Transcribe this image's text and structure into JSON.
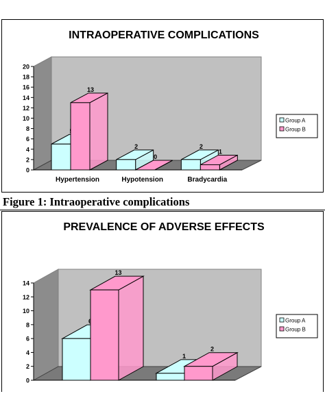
{
  "figure_caption": "Figure 1: Intraoperative complications",
  "chart_data": [
    {
      "type": "bar",
      "title": "INTRAOPERATIVE COMPLICATIONS",
      "categories": [
        "Hypertension",
        "Hypotension",
        "Bradycardia"
      ],
      "series": [
        {
          "name": "Group A",
          "values": [
            5,
            2,
            2
          ],
          "color": "#ccffff"
        },
        {
          "name": "Group B",
          "values": [
            13,
            0,
            1
          ],
          "color": "#ff99cc"
        }
      ],
      "ylim": [
        0,
        20
      ],
      "yticks": [
        0,
        2,
        4,
        6,
        8,
        10,
        12,
        14,
        16,
        18,
        20
      ],
      "grid": false,
      "legend": "right",
      "xlabel": "",
      "ylabel": ""
    },
    {
      "type": "bar",
      "title": "PREVALENCE OF ADVERSE EFFECTS",
      "categories": [
        "",
        ""
      ],
      "series": [
        {
          "name": "Group A",
          "values": [
            6,
            1
          ],
          "color": "#ccffff"
        },
        {
          "name": "Group B",
          "values": [
            13,
            2
          ],
          "color": "#ff99cc"
        }
      ],
      "ylim": [
        0,
        14
      ],
      "yticks": [
        0,
        2,
        4,
        6,
        8,
        10,
        12,
        14
      ],
      "grid": false,
      "legend": "right",
      "xlabel": "",
      "ylabel": ""
    }
  ]
}
